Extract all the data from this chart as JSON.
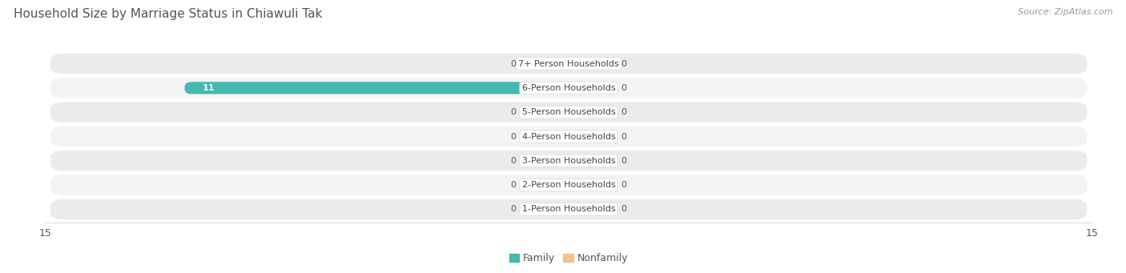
{
  "title": "Household Size by Marriage Status in Chiawuli Tak",
  "source": "Source: ZipAtlas.com",
  "categories": [
    "7+ Person Households",
    "6-Person Households",
    "5-Person Households",
    "4-Person Households",
    "3-Person Households",
    "2-Person Households",
    "1-Person Households"
  ],
  "family_values": [
    0,
    11,
    0,
    0,
    0,
    0,
    0
  ],
  "nonfamily_values": [
    0,
    0,
    0,
    0,
    0,
    0,
    0
  ],
  "family_color": "#45B8B0",
  "nonfamily_color": "#F5C18A",
  "row_bg_color": "#EBEBEB",
  "row_bg_color2": "#F3F3F3",
  "xlim": 15,
  "title_fontsize": 11,
  "source_fontsize": 8,
  "label_fontsize": 8,
  "value_fontsize": 8,
  "axis_label_fontsize": 9,
  "legend_fontsize": 9,
  "bar_height": 0.5,
  "min_bar_size": 1.2
}
